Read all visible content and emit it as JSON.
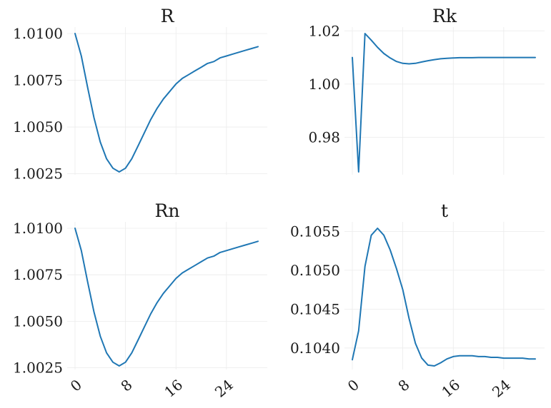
{
  "chart_data": [
    {
      "type": "line",
      "title": "R",
      "color": "#1f77b4",
      "x": [
        0,
        1,
        2,
        3,
        4,
        5,
        6,
        7,
        8,
        9,
        10,
        11,
        12,
        13,
        14,
        15,
        16,
        17,
        18,
        19,
        20,
        21,
        22,
        23,
        24,
        25,
        26,
        27,
        28,
        29
      ],
      "y": [
        1.01,
        1.0088,
        1.0071,
        1.0055,
        1.0042,
        1.0033,
        1.0028,
        1.0026,
        1.0028,
        1.0033,
        1.004,
        1.0047,
        1.0054,
        1.006,
        1.0065,
        1.0069,
        1.0073,
        1.0076,
        1.0078,
        1.008,
        1.0082,
        1.0084,
        1.0085,
        1.0087,
        1.0088,
        1.0089,
        1.009,
        1.0091,
        1.0092,
        1.0093
      ],
      "xlim": [
        0,
        29
      ],
      "ylim": [
        1.0026,
        1.01
      ],
      "xticks": [
        0,
        8,
        16,
        24
      ],
      "yticks": [
        1.0025,
        1.005,
        1.0075,
        1.01
      ],
      "ytick_labels": [
        "1.0025",
        "1.0050",
        "1.0075",
        "1.0100"
      ],
      "grid": true
    },
    {
      "type": "line",
      "title": "Rk",
      "color": "#1f77b4",
      "x": [
        0,
        1,
        2,
        3,
        4,
        5,
        6,
        7,
        8,
        9,
        10,
        11,
        12,
        13,
        14,
        15,
        16,
        17,
        18,
        19,
        20,
        21,
        22,
        23,
        24,
        25,
        26,
        27,
        28,
        29
      ],
      "y": [
        1.01,
        0.967,
        1.019,
        1.0165,
        1.0138,
        1.0115,
        1.0098,
        1.0085,
        1.0078,
        1.0076,
        1.0078,
        1.0083,
        1.0088,
        1.0092,
        1.0095,
        1.0097,
        1.0098,
        1.0099,
        1.0099,
        1.0099,
        1.01,
        1.01,
        1.01,
        1.01,
        1.01,
        1.01,
        1.01,
        1.01,
        1.01,
        1.01
      ],
      "xlim": [
        0,
        29
      ],
      "ylim": [
        0.967,
        1.019
      ],
      "xticks": [
        0,
        8,
        16,
        24
      ],
      "yticks": [
        0.98,
        1.0,
        1.02
      ],
      "ytick_labels": [
        "0.98",
        "1.00",
        "1.02"
      ],
      "grid": true
    },
    {
      "type": "line",
      "title": "Rn",
      "color": "#1f77b4",
      "x": [
        0,
        1,
        2,
        3,
        4,
        5,
        6,
        7,
        8,
        9,
        10,
        11,
        12,
        13,
        14,
        15,
        16,
        17,
        18,
        19,
        20,
        21,
        22,
        23,
        24,
        25,
        26,
        27,
        28,
        29
      ],
      "y": [
        1.01,
        1.0088,
        1.0071,
        1.0055,
        1.0042,
        1.0033,
        1.0028,
        1.0026,
        1.0028,
        1.0033,
        1.004,
        1.0047,
        1.0054,
        1.006,
        1.0065,
        1.0069,
        1.0073,
        1.0076,
        1.0078,
        1.008,
        1.0082,
        1.0084,
        1.0085,
        1.0087,
        1.0088,
        1.0089,
        1.009,
        1.0091,
        1.0092,
        1.0093
      ],
      "xlim": [
        0,
        29
      ],
      "ylim": [
        1.0026,
        1.01
      ],
      "xticks": [
        0,
        8,
        16,
        24
      ],
      "xtick_labels": [
        "0",
        "8",
        "16",
        "24"
      ],
      "yticks": [
        1.0025,
        1.005,
        1.0075,
        1.01
      ],
      "ytick_labels": [
        "1.0025",
        "1.0050",
        "1.0075",
        "1.0100"
      ],
      "grid": true
    },
    {
      "type": "line",
      "title": "t",
      "color": "#1f77b4",
      "x": [
        0,
        1,
        2,
        3,
        4,
        5,
        6,
        7,
        8,
        9,
        10,
        11,
        12,
        13,
        14,
        15,
        16,
        17,
        18,
        19,
        20,
        21,
        22,
        23,
        24,
        25,
        26,
        27,
        28,
        29
      ],
      "y": [
        0.10385,
        0.10422,
        0.10505,
        0.10545,
        0.10554,
        0.10545,
        0.10526,
        0.10502,
        0.10475,
        0.10438,
        0.10406,
        0.10387,
        0.10378,
        0.10377,
        0.10381,
        0.10386,
        0.10389,
        0.1039,
        0.1039,
        0.1039,
        0.10389,
        0.10389,
        0.10388,
        0.10388,
        0.10387,
        0.10387,
        0.10387,
        0.10387,
        0.10386,
        0.10386
      ],
      "xlim": [
        0,
        29
      ],
      "ylim": [
        0.10377,
        0.10554
      ],
      "xticks": [
        0,
        8,
        16,
        24
      ],
      "xtick_labels": [
        "0",
        "8",
        "16",
        "24"
      ],
      "yticks": [
        0.104,
        0.1045,
        0.105,
        0.1055
      ],
      "ytick_labels": [
        "0.1040",
        "0.1045",
        "0.1050",
        "0.1055"
      ],
      "grid": true
    }
  ]
}
